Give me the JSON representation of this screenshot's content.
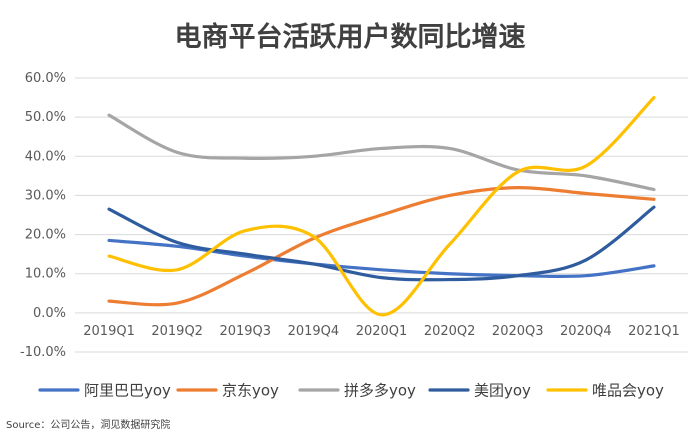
{
  "chart_data": {
    "type": "line",
    "title": "电商平台活跃用户数同比增速",
    "categories": [
      "2019Q1",
      "2019Q2",
      "2019Q3",
      "2019Q4",
      "2020Q1",
      "2020Q2",
      "2020Q3",
      "2020Q4",
      "2021Q1"
    ],
    "y_ticks": [
      "60.0%",
      "50.0%",
      "40.0%",
      "30.0%",
      "20.0%",
      "10.0%",
      "0.0%",
      "-10.0%"
    ],
    "ylim": [
      -10,
      60
    ],
    "grid": true,
    "legend_position": "bottom",
    "series": [
      {
        "name": "阿里巴巴yoy",
        "color": "#4472C4",
        "values": [
          18.5,
          17.0,
          14.5,
          12.5,
          11.0,
          10.0,
          9.5,
          9.5,
          12.0
        ]
      },
      {
        "name": "京东yoy",
        "color": "#ED7D31",
        "values": [
          3.0,
          2.5,
          10.0,
          19.0,
          25.0,
          30.0,
          32.0,
          30.5,
          29.0
        ]
      },
      {
        "name": "拼多多yoy",
        "color": "#A5A5A5",
        "values": [
          50.5,
          41.0,
          39.5,
          40.0,
          42.0,
          42.0,
          36.5,
          35.0,
          31.5
        ]
      },
      {
        "name": "美团yoy",
        "color": "#2E5C9E",
        "values": [
          26.5,
          18.0,
          15.0,
          12.5,
          9.0,
          8.5,
          9.5,
          13.5,
          27.0
        ]
      },
      {
        "name": "唯品会yoy",
        "color": "#FFC000",
        "values": [
          14.5,
          11.0,
          21.0,
          19.5,
          -0.5,
          17.5,
          36.0,
          37.5,
          55.0
        ]
      }
    ]
  },
  "source": "Source：公司公告，洞见数据研究院"
}
